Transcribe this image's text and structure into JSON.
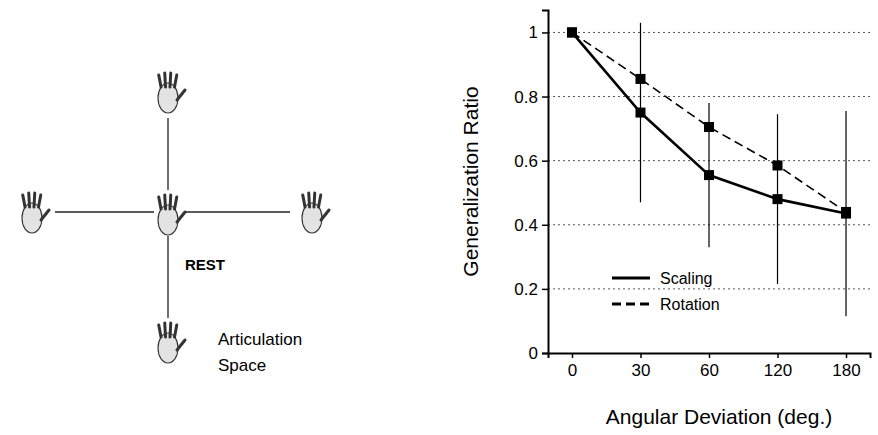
{
  "chart_data": {
    "type": "line",
    "x_label": "Angular Deviation (deg.)",
    "y_label": "Generalization Ratio",
    "categories": [
      "0",
      "30",
      "60",
      "120",
      "180"
    ],
    "ylim": [
      0,
      1.07
    ],
    "yticks": [
      0,
      0.2,
      0.4,
      0.6,
      0.8,
      1
    ],
    "grid": true,
    "legend": "lower left",
    "series": [
      {
        "name": "Scaling",
        "color": "#000000",
        "line_style": "solid",
        "marker": "square",
        "values": [
          1,
          0.75,
          0.555,
          0.48,
          0.435
        ],
        "errors": [
          0,
          0.28,
          0.225,
          0.265,
          0.32
        ]
      },
      {
        "name": "Rotation",
        "color": "#000000",
        "line_style": "dashed",
        "marker": "square",
        "values": [
          1,
          0.855,
          0.705,
          0.585,
          0.44
        ]
      }
    ]
  },
  "diagram": {
    "center_label": "REST",
    "space_label": "Articulation Space"
  }
}
